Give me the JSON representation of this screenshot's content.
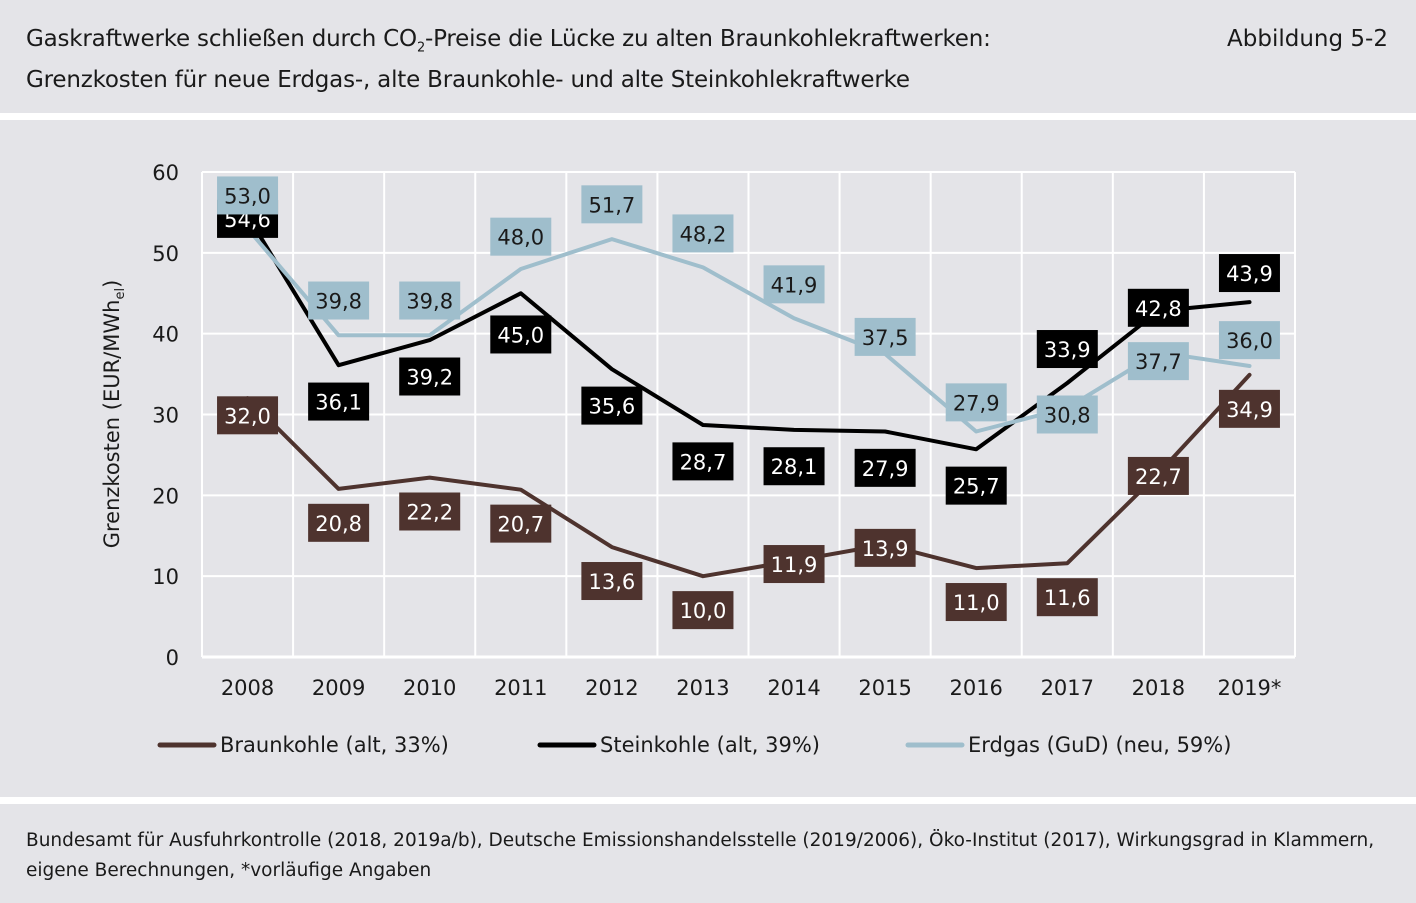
{
  "header": {
    "title_part1": "Gaskraftwerke schließen durch CO",
    "title_sub": "2",
    "title_part2": "-Preise die Lücke zu alten Braunkohlekraftwerken:",
    "subtitle": "Grenzkosten für neue Erdgas-, alte Braunkohle- und alte Steinkohlekraftwerke",
    "figure_number": "Abbildung 5-2"
  },
  "chart_data": {
    "type": "line",
    "categories": [
      "2008",
      "2009",
      "2010",
      "2011",
      "2012",
      "2013",
      "2014",
      "2015",
      "2016",
      "2017",
      "2018",
      "2019*"
    ],
    "ylabel": "Grenzkosten (EUR/MWh",
    "ylabel_sub": "el",
    "ylabel_close": ")",
    "ylim": [
      0,
      60
    ],
    "yticks": [
      0,
      10,
      20,
      30,
      40,
      50,
      60
    ],
    "grid": true,
    "legend_position": "bottom",
    "series": [
      {
        "name": "Braunkohle (alt, 33%)",
        "color": "#4e332e",
        "label_text_color": "#ffffff",
        "values": [
          32.0,
          20.8,
          22.2,
          20.7,
          13.6,
          10.0,
          11.9,
          13.9,
          11.0,
          11.6,
          22.7,
          34.9
        ],
        "labels": [
          "32,0",
          "20,8",
          "22,2",
          "20,7",
          "13,6",
          "10,0",
          "11,9",
          "13,9",
          "11,0",
          "11,6",
          "22,7",
          "34,9"
        ]
      },
      {
        "name": "Steinkohle (alt, 39%)",
        "color": "#000000",
        "label_text_color": "#ffffff",
        "values": [
          54.6,
          36.1,
          39.2,
          45.0,
          35.6,
          28.7,
          28.1,
          27.9,
          25.7,
          33.9,
          42.8,
          43.9
        ],
        "labels": [
          "54,6",
          "36,1",
          "39,2",
          "45,0",
          "35,6",
          "28,7",
          "28,1",
          "27,9",
          "25,7",
          "33,9",
          "42,8",
          "43,9"
        ]
      },
      {
        "name": "Erdgas (GuD) (neu, 59%)",
        "color": "#9fbecc",
        "label_text_color": "#1a1a1a",
        "values": [
          53.0,
          39.8,
          39.8,
          48.0,
          51.7,
          48.2,
          41.9,
          37.5,
          27.9,
          30.8,
          37.7,
          36.0
        ],
        "labels": [
          "53,0",
          "39,8",
          "39,8",
          "48,0",
          "51,7",
          "48,2",
          "41,9",
          "37,5",
          "27,9",
          "30,8",
          "37,7",
          "36,0"
        ]
      }
    ]
  },
  "footer": {
    "source": "Bundesamt für Ausfuhrkontrolle (2018, 2019a/b), Deutsche Emissionshandelsstelle (2019/2006), Öko-Institut (2017), Wirkungsgrad in Klammern, eigene Berechnungen, *vorläufige Angaben"
  }
}
